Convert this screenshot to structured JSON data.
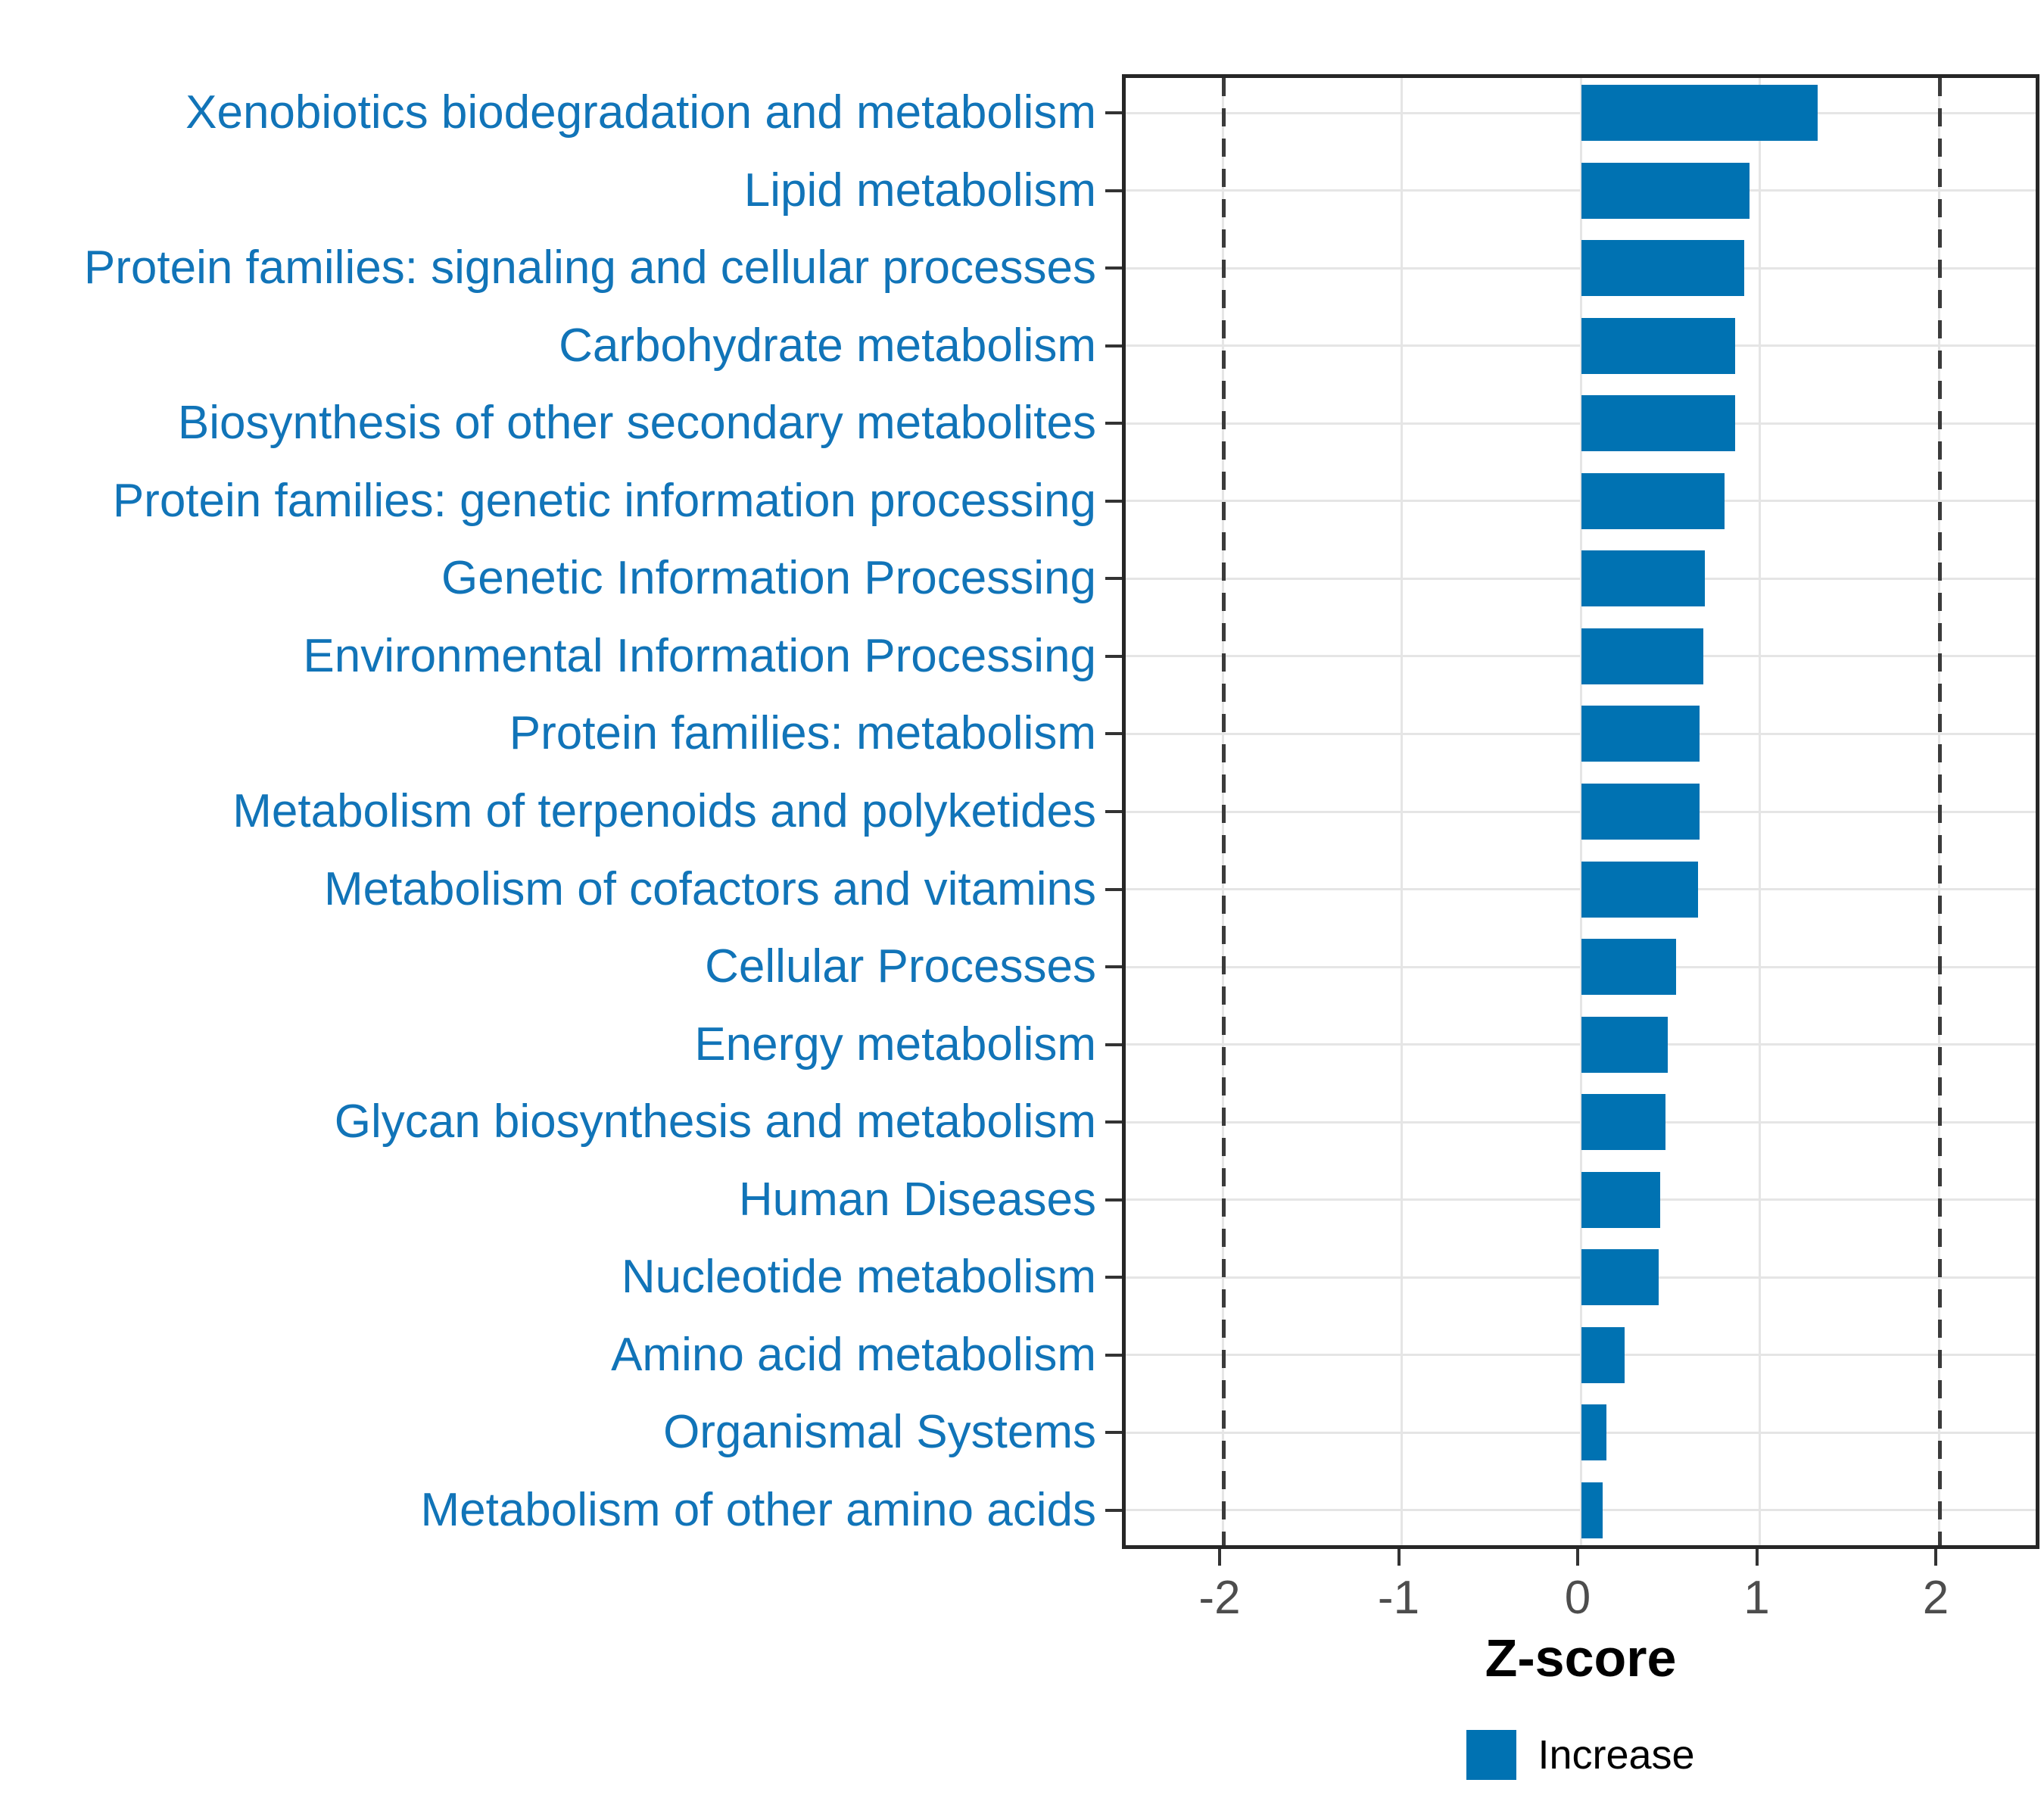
{
  "chart_data": {
    "type": "bar",
    "orientation": "horizontal",
    "title": "",
    "xlabel": "Z-score",
    "ylabel": "",
    "categories": [
      "Xenobiotics biodegradation and metabolism",
      "Lipid metabolism",
      "Protein families: signaling and cellular processes",
      "Carbohydrate metabolism",
      "Biosynthesis of other secondary metabolites",
      "Protein families: genetic information processing",
      "Genetic Information Processing",
      "Environmental Information Processing",
      "Protein families: metabolism",
      "Metabolism of terpenoids and polyketides",
      "Metabolism of cofactors and vitamins",
      "Cellular Processes",
      "Energy metabolism",
      "Glycan biosynthesis and metabolism",
      "Human Diseases",
      "Nucleotide metabolism",
      "Amino acid metabolism",
      "Organismal Systems",
      "Metabolism of other amino acids"
    ],
    "values": [
      1.32,
      0.94,
      0.91,
      0.86,
      0.86,
      0.8,
      0.69,
      0.68,
      0.66,
      0.66,
      0.65,
      0.53,
      0.48,
      0.47,
      0.44,
      0.43,
      0.24,
      0.14,
      0.12
    ],
    "series_name": "Increase",
    "xlim": [
      -2.57,
      2.56
    ],
    "x_tick_values": [
      -2,
      -1,
      0,
      1,
      2
    ],
    "x_tick_labels": [
      "-2",
      "-1",
      "0",
      "1",
      "2"
    ],
    "reference_lines": [
      -2,
      2
    ],
    "grid": "on",
    "legend": {
      "position": "bottom",
      "entries": [
        {
          "label": "Increase",
          "color": "#0072B2"
        }
      ]
    },
    "colors": {
      "bar": "#0072B2",
      "category_label": "#1174B8",
      "tick_label": "#4D4D4D",
      "axis_title": "#000000",
      "legend_text": "#000000",
      "gridline": "#E5E5E5",
      "panel_border": "#262626",
      "tick_mark": "#333333",
      "reference_line": "#3B3B3B",
      "background": "#FFFFFF"
    }
  }
}
